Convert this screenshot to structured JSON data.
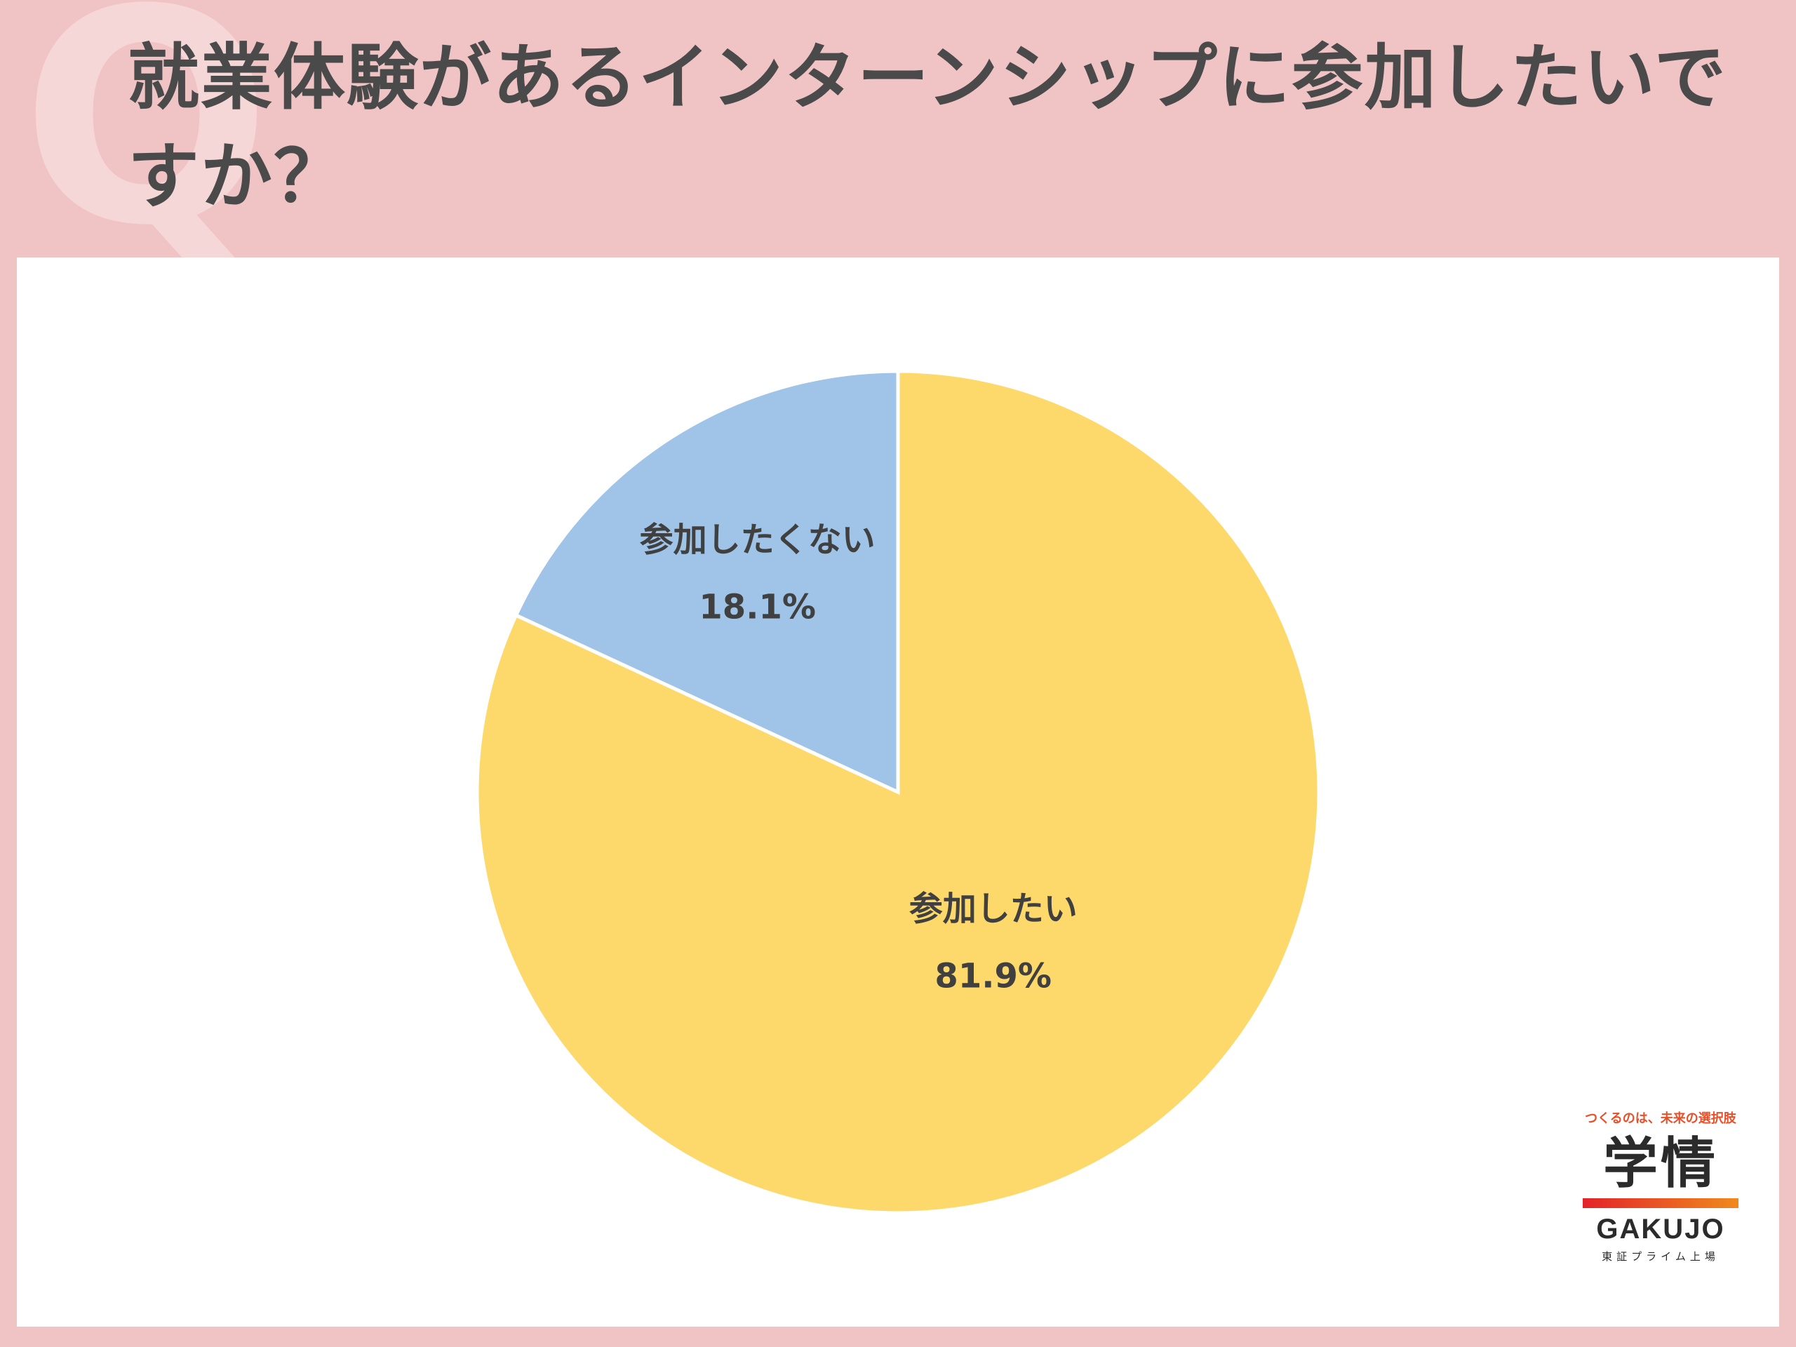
{
  "header": {
    "watermark": "Q",
    "title": "就業体験があるインターンシップに参加したいですか？"
  },
  "chart_data": {
    "type": "pie",
    "title": "就業体験があるインターンシップに参加したいですか？",
    "categories": [
      "参加したい",
      "参加したくない"
    ],
    "values": [
      81.9,
      18.1
    ],
    "value_labels": [
      "81.9%",
      "18.1%"
    ],
    "colors": [
      "#FDD96B",
      "#9FC4E7"
    ],
    "start_angle": "12 o'clock, clockwise",
    "legend": "none, labels inside slices"
  },
  "logo": {
    "tagline": "つくるのは、未来の選択肢",
    "kanji": "学情",
    "latin": "GAKUJO",
    "listing": "東証プライム上場"
  }
}
